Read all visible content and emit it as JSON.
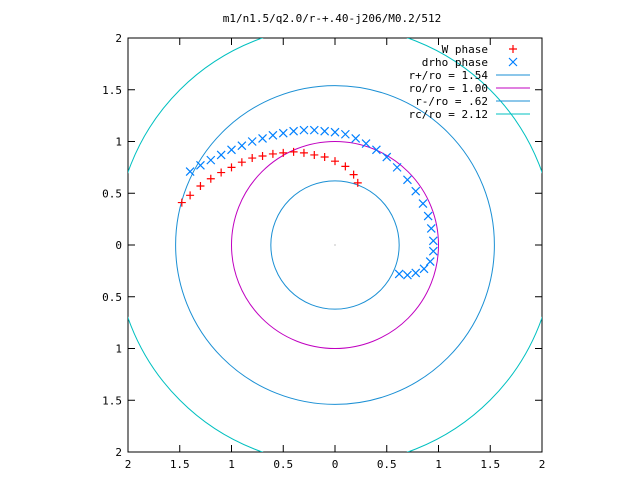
{
  "chart_data": {
    "type": "scatter",
    "title": "m1/n1.5/q2.0/r-+.40-j206/M0.2/512",
    "xlabel": "",
    "ylabel": "",
    "xlim": [
      -2,
      2
    ],
    "ylim": [
      -2,
      2
    ],
    "x_ticks": [
      -2,
      -1.5,
      -1,
      -0.5,
      0,
      0.5,
      1,
      1.5,
      2
    ],
    "y_ticks": [
      -2,
      -1.5,
      -1,
      -0.5,
      0,
      0.5,
      1,
      1.5,
      2
    ],
    "x_tick_labels": [
      "2",
      "1.5",
      "1",
      "0.5",
      "0",
      "0.5",
      "1",
      "1.5",
      "2"
    ],
    "y_tick_labels": [
      "2",
      "1.5",
      "1",
      "0.5",
      "0",
      "0.5",
      "1",
      "1.5",
      "2"
    ],
    "grid": false,
    "legend_position": "top-right",
    "series": [
      {
        "name": "W phase",
        "kind": "points",
        "marker": "+",
        "color": "#ff0000",
        "points": [
          [
            -1.48,
            0.41
          ],
          [
            -1.4,
            0.48
          ],
          [
            -1.3,
            0.57
          ],
          [
            -1.2,
            0.64
          ],
          [
            -1.1,
            0.7
          ],
          [
            -1.0,
            0.75
          ],
          [
            -0.9,
            0.8
          ],
          [
            -0.8,
            0.84
          ],
          [
            -0.7,
            0.86
          ],
          [
            -0.6,
            0.88
          ],
          [
            -0.5,
            0.89
          ],
          [
            -0.4,
            0.9
          ],
          [
            -0.3,
            0.89
          ],
          [
            -0.2,
            0.87
          ],
          [
            -0.1,
            0.85
          ],
          [
            0.0,
            0.81
          ],
          [
            0.1,
            0.76
          ],
          [
            0.18,
            0.68
          ],
          [
            0.22,
            0.6
          ]
        ]
      },
      {
        "name": "drho phase",
        "kind": "points",
        "marker": "x",
        "color": "#0080ff",
        "points": [
          [
            -1.4,
            0.71
          ],
          [
            -1.3,
            0.77
          ],
          [
            -1.2,
            0.82
          ],
          [
            -1.1,
            0.87
          ],
          [
            -1.0,
            0.92
          ],
          [
            -0.9,
            0.96
          ],
          [
            -0.8,
            1.0
          ],
          [
            -0.7,
            1.03
          ],
          [
            -0.6,
            1.06
          ],
          [
            -0.5,
            1.08
          ],
          [
            -0.4,
            1.1
          ],
          [
            -0.3,
            1.11
          ],
          [
            -0.2,
            1.11
          ],
          [
            -0.1,
            1.1
          ],
          [
            0.0,
            1.09
          ],
          [
            0.1,
            1.07
          ],
          [
            0.2,
            1.03
          ],
          [
            0.3,
            0.98
          ],
          [
            0.4,
            0.92
          ],
          [
            0.5,
            0.85
          ],
          [
            0.6,
            0.75
          ],
          [
            0.7,
            0.63
          ],
          [
            0.78,
            0.52
          ],
          [
            0.85,
            0.4
          ],
          [
            0.9,
            0.28
          ],
          [
            0.93,
            0.16
          ],
          [
            0.95,
            0.04
          ],
          [
            0.95,
            -0.06
          ],
          [
            0.92,
            -0.16
          ],
          [
            0.86,
            -0.23
          ],
          [
            0.78,
            -0.27
          ],
          [
            0.7,
            -0.29
          ],
          [
            0.62,
            -0.28
          ]
        ]
      },
      {
        "name": "r+/ro = 1.54",
        "label": "r+/ro = 1.54",
        "kind": "circle",
        "radius": 1.54,
        "color": "#1a8fd4"
      },
      {
        "name": "ro/ro = 1.00",
        "label": "ro/ro = 1.00",
        "kind": "circle",
        "radius": 1.0,
        "color": "#c000c0"
      },
      {
        "name": "r-/ro = .62",
        "label": "r-/ro = .62",
        "kind": "circle",
        "radius": 0.62,
        "color": "#1a8fd4"
      },
      {
        "name": "rc/ro = 2.12",
        "label": "rc/ro = 2.12",
        "kind": "circle",
        "radius": 2.12,
        "color": "#00c0c0"
      }
    ]
  }
}
